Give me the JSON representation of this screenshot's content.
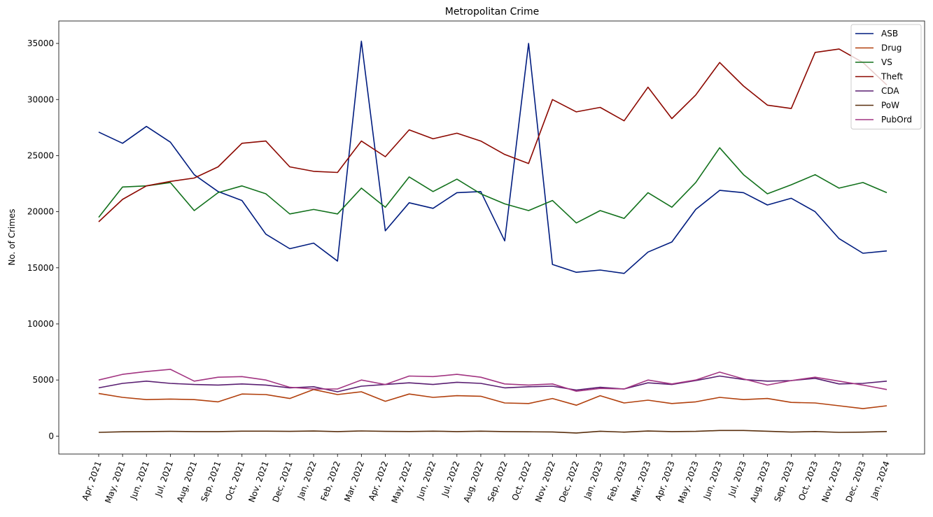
{
  "chart_data": {
    "type": "line",
    "title": "Metropolitan Crime",
    "xlabel": "",
    "ylabel": "No. of Crimes",
    "ylim": [
      -1600,
      37000
    ],
    "yticks": [
      0,
      5000,
      10000,
      15000,
      20000,
      25000,
      30000,
      35000
    ],
    "grid": false,
    "legend_position": "top-right",
    "categories": [
      "Apr, 2021",
      "May, 2021",
      "Jun, 2021",
      "Jul, 2021",
      "Aug, 2021",
      "Sep, 2021",
      "Oct, 2021",
      "Nov, 2021",
      "Dec, 2021",
      "Jan, 2022",
      "Feb, 2022",
      "Mar, 2022",
      "Apr, 2022",
      "May, 2022",
      "Jun, 2022",
      "Jul, 2022",
      "Aug, 2022",
      "Sep, 2022",
      "Oct, 2022",
      "Nov, 2022",
      "Dec, 2022",
      "Jan, 2023",
      "Feb, 2023",
      "Mar, 2023",
      "Apr, 2023",
      "May, 2023",
      "Jun, 2023",
      "Jul, 2023",
      "Aug, 2023",
      "Sep, 2023",
      "Oct, 2023",
      "Nov, 2023",
      "Dec, 2023",
      "Jan, 2024"
    ],
    "series": [
      {
        "name": "ASB",
        "color": "#001c7f",
        "values": [
          27100,
          26100,
          27600,
          26200,
          23300,
          21800,
          21000,
          18000,
          16700,
          17200,
          15600,
          35200,
          18300,
          20800,
          20300,
          21700,
          21800,
          17400,
          35000,
          15300,
          14600,
          14800,
          14500,
          16400,
          17300,
          20200,
          21900,
          21700,
          20600,
          21200,
          20000,
          17600,
          16300,
          16500
        ]
      },
      {
        "name": "Drug",
        "color": "#b1400d",
        "values": [
          3800,
          3450,
          3250,
          3300,
          3250,
          3050,
          3750,
          3700,
          3350,
          4150,
          3700,
          3950,
          3100,
          3750,
          3450,
          3600,
          3550,
          2950,
          2900,
          3350,
          2750,
          3600,
          2950,
          3200,
          2900,
          3050,
          3450,
          3250,
          3350,
          3000,
          2950,
          2700,
          2450,
          2700
        ]
      },
      {
        "name": "VS",
        "color": "#12711c",
        "values": [
          19500,
          22200,
          22300,
          22600,
          20100,
          21700,
          22300,
          21600,
          19800,
          20200,
          19800,
          22100,
          20400,
          23100,
          21800,
          22900,
          21600,
          20700,
          20100,
          21000,
          19000,
          20100,
          19400,
          21700,
          20400,
          22600,
          25700,
          23300,
          21600,
          22400,
          23300,
          22100,
          22600,
          21700
        ]
      },
      {
        "name": "Theft",
        "color": "#8c0800",
        "values": [
          19100,
          21100,
          22300,
          22700,
          23000,
          24000,
          26100,
          26300,
          24000,
          23600,
          23500,
          26300,
          24900,
          27300,
          26500,
          27000,
          26300,
          25100,
          24300,
          30000,
          28900,
          29300,
          28100,
          31100,
          28300,
          30400,
          33300,
          31200,
          29500,
          29200,
          34200,
          34500,
          33300,
          31300
        ]
      },
      {
        "name": "CDA",
        "color": "#591e71",
        "values": [
          4300,
          4700,
          4900,
          4700,
          4600,
          4550,
          4650,
          4550,
          4300,
          4400,
          3950,
          4450,
          4600,
          4750,
          4600,
          4800,
          4700,
          4300,
          4400,
          4450,
          4100,
          4350,
          4200,
          4750,
          4600,
          4950,
          5350,
          5050,
          4900,
          4950,
          5150,
          4650,
          4700,
          4900
        ]
      },
      {
        "name": "PoW",
        "color": "#592f0d",
        "values": [
          330,
          380,
          400,
          420,
          400,
          400,
          440,
          440,
          420,
          450,
          400,
          460,
          420,
          410,
          440,
          400,
          440,
          400,
          380,
          370,
          280,
          430,
          350,
          450,
          400,
          420,
          500,
          500,
          430,
          360,
          410,
          330,
          350,
          410
        ]
      },
      {
        "name": "PubOrd",
        "color": "#a23582",
        "values": [
          5000,
          5500,
          5750,
          5950,
          4900,
          5250,
          5300,
          5000,
          4350,
          4200,
          4200,
          5000,
          4600,
          5350,
          5300,
          5500,
          5250,
          4650,
          4550,
          4650,
          4000,
          4250,
          4200,
          5000,
          4650,
          5000,
          5700,
          5100,
          4550,
          4950,
          5250,
          4900,
          4550,
          4150
        ]
      }
    ]
  }
}
